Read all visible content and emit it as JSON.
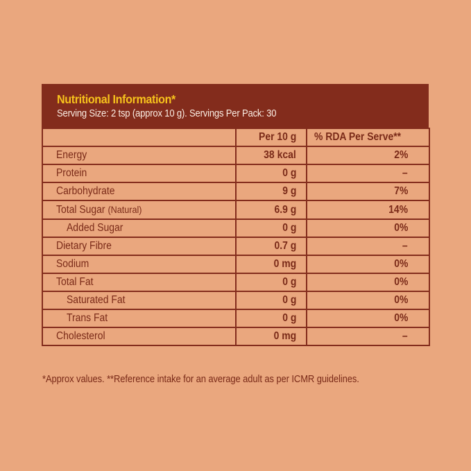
{
  "colors": {
    "background": "#eaa77e",
    "header_band": "#832c1c",
    "title": "#f7c21c",
    "subtitle": "#fbeee4",
    "text": "#7a2a18",
    "border": "#832c1c"
  },
  "header": {
    "title": "Nutritional Information*",
    "subtitle": "Serving Size: 2 tsp (approx 10 g). Servings Per Pack: 30"
  },
  "table": {
    "columns": [
      "",
      "Per 10 g",
      "% RDA Per Serve**"
    ],
    "rows": [
      {
        "name": "Energy",
        "note": "",
        "per10g": "38 kcal",
        "rda": "2%",
        "indent": false
      },
      {
        "name": "Protein",
        "note": "",
        "per10g": "0 g",
        "rda": "–",
        "indent": false
      },
      {
        "name": "Carbohydrate",
        "note": "",
        "per10g": "9 g",
        "rda": "7%",
        "indent": false
      },
      {
        "name": "Total Sugar",
        "note": "(Natural)",
        "per10g": "6.9 g",
        "rda": "14%",
        "indent": false
      },
      {
        "name": "Added Sugar",
        "note": "",
        "per10g": "0 g",
        "rda": "0%",
        "indent": true
      },
      {
        "name": "Dietary Fibre",
        "note": "",
        "per10g": "0.7 g",
        "rda": "–",
        "indent": false
      },
      {
        "name": "Sodium",
        "note": "",
        "per10g": "0 mg",
        "rda": "0%",
        "indent": false
      },
      {
        "name": "Total Fat",
        "note": "",
        "per10g": "0 g",
        "rda": "0%",
        "indent": false
      },
      {
        "name": "Saturated Fat",
        "note": "",
        "per10g": "0 g",
        "rda": "0%",
        "indent": true
      },
      {
        "name": "Trans Fat",
        "note": "",
        "per10g": "0 g",
        "rda": "0%",
        "indent": true
      },
      {
        "name": "Cholesterol",
        "note": "",
        "per10g": "0 mg",
        "rda": "–",
        "indent": false
      }
    ]
  },
  "footnote": "*Approx values. **Reference intake for an average adult as per ICMR guidelines."
}
